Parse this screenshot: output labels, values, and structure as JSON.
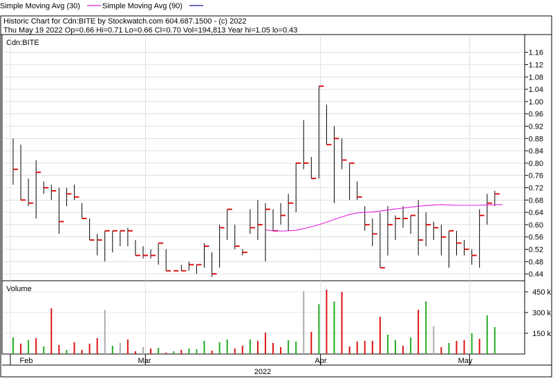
{
  "legend": {
    "sma30_label": "Simple Moving Avg (30)",
    "sma90_label": "Simple Moving Avg (90)",
    "sma30_color": "#e020e0",
    "sma90_color": "#1010a0"
  },
  "header": {
    "line1": "Historic Chart for Cdn:BITE by Stockwatch.com 604.687.1500 - (c) 2022",
    "line2": "Thu May 19 2022  Op=0.66  Hi=0.71  Lo=0.66  Cl=0.70  Vol=194,813  Year hi=1.05  lo=0.43"
  },
  "colors": {
    "up": "#22aa22",
    "down": "#dd1111",
    "flat": "#aaaaaa",
    "bar": "#000000",
    "tick": "#dd1111",
    "grid": "#cccccc"
  },
  "chart_data": {
    "type": "ohlc",
    "symbol": "Cdn:BITE",
    "price_axis": {
      "ylim": [
        0.42,
        1.18
      ],
      "ticks": [
        "1.16",
        "1.12",
        "1.08",
        "1.04",
        "1.00",
        "0.96",
        "0.92",
        "0.88",
        "0.84",
        "0.80",
        "0.76",
        "0.72",
        "0.68",
        "0.64",
        "0.60",
        "0.56",
        "0.52",
        "0.48",
        "0.44"
      ]
    },
    "volume_axis": {
      "title": "Volume",
      "ylim": [
        0,
        500000
      ],
      "ticks": [
        "450 k",
        "300 k",
        "150 k"
      ]
    },
    "x_axis": {
      "months": [
        "Feb",
        "Mar",
        "Apr",
        "May"
      ],
      "year": "2022"
    },
    "bars": [
      {
        "hi": 0.88,
        "lo": 0.73,
        "cl": 0.78,
        "vol": 120000,
        "dir": "up"
      },
      {
        "hi": 0.86,
        "lo": 0.68,
        "cl": 0.68,
        "vol": 75000,
        "dir": "down"
      },
      {
        "hi": 0.75,
        "lo": 0.66,
        "cl": 0.67,
        "vol": 100000,
        "dir": "up"
      },
      {
        "hi": 0.81,
        "lo": 0.62,
        "cl": 0.77,
        "vol": 115000,
        "dir": "down"
      },
      {
        "hi": 0.74,
        "lo": 0.7,
        "cl": 0.72,
        "vol": 55000,
        "dir": "up"
      },
      {
        "hi": 0.73,
        "lo": 0.68,
        "cl": 0.71,
        "vol": 330000,
        "dir": "down"
      },
      {
        "hi": 0.72,
        "lo": 0.57,
        "cl": 0.61,
        "vol": 65000,
        "dir": "down"
      },
      {
        "hi": 0.72,
        "lo": 0.66,
        "cl": 0.7,
        "vol": 30000,
        "dir": "up"
      },
      {
        "hi": 0.73,
        "lo": 0.68,
        "cl": 0.69,
        "vol": 85000,
        "dir": "down"
      },
      {
        "hi": 0.67,
        "lo": 0.62,
        "cl": 0.62,
        "vol": 30000,
        "dir": "down"
      },
      {
        "hi": 0.62,
        "lo": 0.55,
        "cl": 0.55,
        "vol": 75000,
        "dir": "down"
      },
      {
        "hi": 0.57,
        "lo": 0.5,
        "cl": 0.55,
        "vol": 115000,
        "dir": "down"
      },
      {
        "hi": 0.58,
        "lo": 0.48,
        "cl": 0.58,
        "vol": 320000,
        "dir": "flat"
      },
      {
        "hi": 0.58,
        "lo": 0.51,
        "cl": 0.58,
        "vol": 60000,
        "dir": "up"
      },
      {
        "hi": 0.58,
        "lo": 0.53,
        "cl": 0.58,
        "vol": 80000,
        "dir": "flat"
      },
      {
        "hi": 0.59,
        "lo": 0.53,
        "cl": 0.58,
        "vol": 105000,
        "dir": "down"
      },
      {
        "hi": 0.55,
        "lo": 0.5,
        "cl": 0.5,
        "vol": 20000,
        "dir": "down"
      },
      {
        "hi": 0.53,
        "lo": 0.49,
        "cl": 0.5,
        "vol": 50000,
        "dir": "flat"
      },
      {
        "hi": 0.52,
        "lo": 0.49,
        "cl": 0.5,
        "vol": 40000,
        "dir": "down"
      },
      {
        "hi": 0.54,
        "lo": 0.47,
        "cl": 0.54,
        "vol": 45000,
        "dir": "up"
      },
      {
        "hi": 0.52,
        "lo": 0.45,
        "cl": 0.45,
        "vol": 10000,
        "dir": "down"
      },
      {
        "hi": 0.45,
        "lo": 0.45,
        "cl": 0.45,
        "vol": 20000,
        "dir": "up"
      },
      {
        "hi": 0.47,
        "lo": 0.45,
        "cl": 0.45,
        "vol": 30000,
        "dir": "down"
      },
      {
        "hi": 0.48,
        "lo": 0.45,
        "cl": 0.47,
        "vol": 40000,
        "dir": "up"
      },
      {
        "hi": 0.47,
        "lo": 0.44,
        "cl": 0.47,
        "vol": 35000,
        "dir": "up"
      },
      {
        "hi": 0.54,
        "lo": 0.46,
        "cl": 0.53,
        "vol": 95000,
        "dir": "up"
      },
      {
        "hi": 0.51,
        "lo": 0.43,
        "cl": 0.44,
        "vol": 25000,
        "dir": "down"
      },
      {
        "hi": 0.6,
        "lo": 0.46,
        "cl": 0.59,
        "vol": 85000,
        "dir": "up"
      },
      {
        "hi": 0.65,
        "lo": 0.55,
        "cl": 0.65,
        "vol": 105000,
        "dir": "up"
      },
      {
        "hi": 0.6,
        "lo": 0.52,
        "cl": 0.53,
        "vol": 40000,
        "dir": "down"
      },
      {
        "hi": 0.52,
        "lo": 0.5,
        "cl": 0.51,
        "vol": 60000,
        "dir": "down"
      },
      {
        "hi": 0.65,
        "lo": 0.57,
        "cl": 0.59,
        "vol": 105000,
        "dir": "up"
      },
      {
        "hi": 0.68,
        "lo": 0.55,
        "cl": 0.6,
        "vol": 95000,
        "dir": "down"
      },
      {
        "hi": 0.67,
        "lo": 0.48,
        "cl": 0.65,
        "vol": 155000,
        "dir": "down"
      },
      {
        "hi": 0.65,
        "lo": 0.58,
        "cl": 0.58,
        "vol": 80000,
        "dir": "down"
      },
      {
        "hi": 0.67,
        "lo": 0.6,
        "cl": 0.63,
        "vol": 50000,
        "dir": "down"
      },
      {
        "hi": 0.7,
        "lo": 0.58,
        "cl": 0.67,
        "vol": 100000,
        "dir": "up"
      },
      {
        "hi": 0.8,
        "lo": 0.64,
        "cl": 0.8,
        "vol": 90000,
        "dir": "up"
      },
      {
        "hi": 0.94,
        "lo": 0.78,
        "cl": 0.8,
        "vol": 455000,
        "dir": "flat"
      },
      {
        "hi": 0.82,
        "lo": 0.75,
        "cl": 0.75,
        "vol": 160000,
        "dir": "down"
      },
      {
        "hi": 1.05,
        "lo": 0.75,
        "cl": 1.05,
        "vol": 360000,
        "dir": "up"
      },
      {
        "hi": 0.99,
        "lo": 0.86,
        "cl": 0.86,
        "vol": 465000,
        "dir": "down"
      },
      {
        "hi": 0.92,
        "lo": 0.67,
        "cl": 0.88,
        "vol": 380000,
        "dir": "up"
      },
      {
        "hi": 0.88,
        "lo": 0.78,
        "cl": 0.81,
        "vol": 450000,
        "dir": "down"
      },
      {
        "hi": 0.8,
        "lo": 0.68,
        "cl": 0.8,
        "vol": 55000,
        "dir": "down"
      },
      {
        "hi": 0.74,
        "lo": 0.68,
        "cl": 0.69,
        "vol": 90000,
        "dir": "down"
      },
      {
        "hi": 0.66,
        "lo": 0.58,
        "cl": 0.6,
        "vol": 95000,
        "dir": "down"
      },
      {
        "hi": 0.62,
        "lo": 0.53,
        "cl": 0.57,
        "vol": 95000,
        "dir": "down"
      },
      {
        "hi": 0.64,
        "lo": 0.46,
        "cl": 0.46,
        "vol": 270000,
        "dir": "down"
      },
      {
        "hi": 0.66,
        "lo": 0.5,
        "cl": 0.6,
        "vol": 140000,
        "dir": "up"
      },
      {
        "hi": 0.63,
        "lo": 0.55,
        "cl": 0.62,
        "vol": 100000,
        "dir": "up"
      },
      {
        "hi": 0.66,
        "lo": 0.59,
        "cl": 0.62,
        "vol": 60000,
        "dir": "down"
      },
      {
        "hi": 0.63,
        "lo": 0.57,
        "cl": 0.63,
        "vol": 120000,
        "dir": "up"
      },
      {
        "hi": 0.68,
        "lo": 0.5,
        "cl": 0.55,
        "vol": 320000,
        "dir": "down"
      },
      {
        "hi": 0.64,
        "lo": 0.53,
        "cl": 0.6,
        "vol": 380000,
        "dir": "up"
      },
      {
        "hi": 0.61,
        "lo": 0.55,
        "cl": 0.59,
        "vol": 200000,
        "dir": "flat"
      },
      {
        "hi": 0.6,
        "lo": 0.5,
        "cl": 0.56,
        "vol": 50000,
        "dir": "down"
      },
      {
        "hi": 0.58,
        "lo": 0.46,
        "cl": 0.58,
        "vol": 80000,
        "dir": "up"
      },
      {
        "hi": 0.58,
        "lo": 0.5,
        "cl": 0.54,
        "vol": 95000,
        "dir": "down"
      },
      {
        "hi": 0.55,
        "lo": 0.5,
        "cl": 0.52,
        "vol": 100000,
        "dir": "down"
      },
      {
        "hi": 0.52,
        "lo": 0.47,
        "cl": 0.5,
        "vol": 150000,
        "dir": "up"
      },
      {
        "hi": 0.65,
        "lo": 0.46,
        "cl": 0.63,
        "vol": 110000,
        "dir": "down"
      },
      {
        "hi": 0.7,
        "lo": 0.6,
        "cl": 0.67,
        "vol": 280000,
        "dir": "up"
      },
      {
        "hi": 0.71,
        "lo": 0.66,
        "cl": 0.7,
        "vol": 195000,
        "dir": "up"
      }
    ],
    "series": [
      {
        "name": "Simple Moving Avg (30)",
        "start_index": 33,
        "values": [
          0.583,
          0.58,
          0.579,
          0.58,
          0.582,
          0.587,
          0.593,
          0.6,
          0.608,
          0.617,
          0.625,
          0.633,
          0.638,
          0.64,
          0.641,
          0.644,
          0.648,
          0.651,
          0.654,
          0.657,
          0.66,
          0.662,
          0.664,
          0.665,
          0.664,
          0.663,
          0.663,
          0.663,
          0.663,
          0.664,
          0.665,
          0.665
        ]
      },
      {
        "name": "Simple Moving Avg (90)",
        "values": []
      }
    ]
  }
}
